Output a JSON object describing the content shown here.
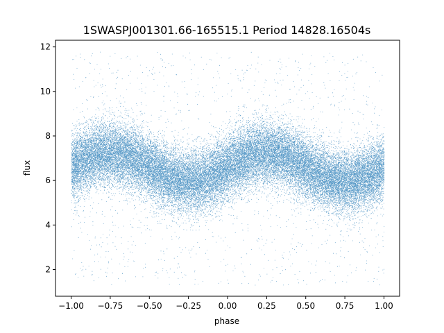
{
  "chart_data": {
    "type": "scatter",
    "title": "1SWASPJ001301.66-165515.1 Period 14828.16504s",
    "xlabel": "phase",
    "ylabel": "flux",
    "xlim": [
      -1.1,
      1.1
    ],
    "ylim": [
      0.8,
      12.3
    ],
    "xticks": [
      -1.0,
      -0.75,
      -0.5,
      -0.25,
      0.0,
      0.25,
      0.5,
      0.75,
      1.0
    ],
    "xtick_labels": [
      "−1.00",
      "−0.75",
      "−0.50",
      "−0.25",
      "0.00",
      "0.25",
      "0.50",
      "0.75",
      "1.00"
    ],
    "yticks": [
      2,
      4,
      6,
      8,
      10,
      12
    ],
    "ytick_labels": [
      "2",
      "4",
      "6",
      "8",
      "10",
      "12"
    ],
    "grid": false,
    "point_color": "#1f77b4",
    "series": [
      {
        "points_description": "dense folded light curve over phase −1 to 1, sinusoidal band",
        "model": {
          "mean": 6.6,
          "amplitude": 0.65,
          "peak_phases": [
            -0.75,
            0.25
          ],
          "trough_phases": [
            -0.25,
            0.75
          ],
          "scatter_sd": 0.7
        },
        "outlier_range": [
          1.3,
          11.8
        ],
        "n_points": 40000
      }
    ]
  }
}
